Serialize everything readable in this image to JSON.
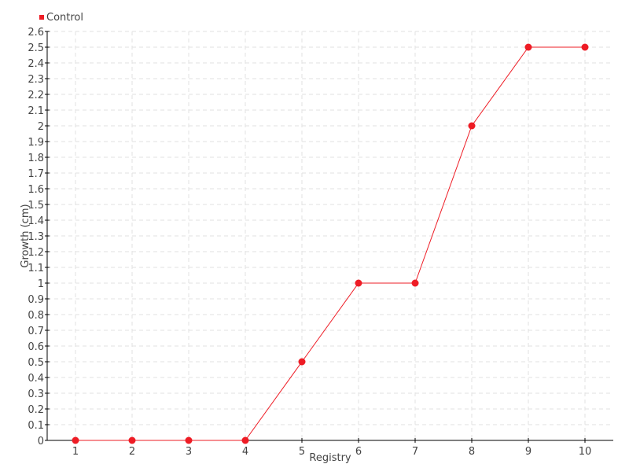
{
  "chart_data": {
    "type": "line",
    "title": "",
    "xlabel": "Registry",
    "ylabel": "Growth (cm)",
    "x": [
      1,
      2,
      3,
      4,
      5,
      6,
      7,
      8,
      9,
      10
    ],
    "series": [
      {
        "name": "Control",
        "color": "#ee1c25",
        "values": [
          0,
          0,
          0,
          0,
          0.5,
          1,
          1,
          2,
          2.5,
          2.5
        ]
      }
    ],
    "xlim": [
      0.5,
      10.5
    ],
    "ylim": [
      0,
      2.6
    ],
    "y_tick_step": 0.1,
    "y_tick_labels": [
      "0",
      "0.1",
      "0.2",
      "0.3",
      "0.4",
      "0.5",
      "0.6",
      "0.7",
      "0.8",
      "0.9",
      "1",
      "1.1",
      "1.2",
      "1.3",
      "1.4",
      "1.5",
      "1.6",
      "1.7",
      "1.8",
      "1.9",
      "2",
      "2.1",
      "2.2",
      "2.3",
      "2.4",
      "2.5",
      "2.6"
    ],
    "x_tick_labels": [
      "1",
      "2",
      "3",
      "4",
      "5",
      "6",
      "7",
      "8",
      "9",
      "10"
    ],
    "grid": true,
    "legend": "top-left"
  }
}
